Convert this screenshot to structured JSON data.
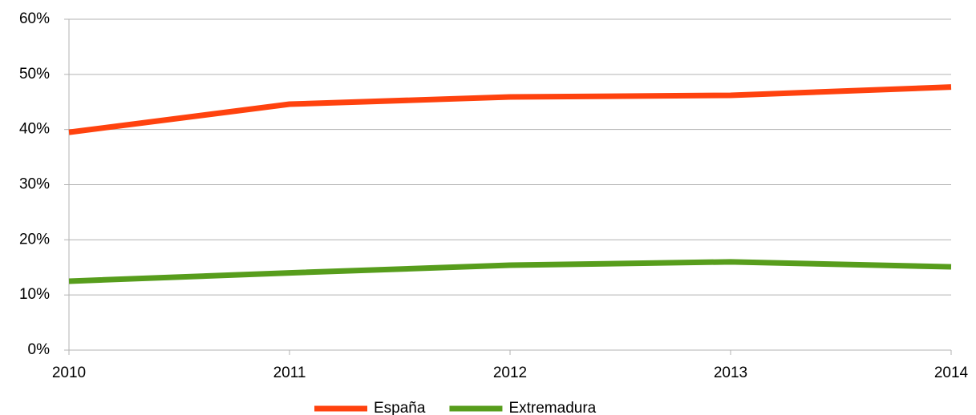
{
  "chart_data": {
    "type": "line",
    "categories": [
      "2010",
      "2011",
      "2012",
      "2013",
      "2014"
    ],
    "series": [
      {
        "name": "España",
        "color": "#ff420e",
        "values": [
          39.5,
          44.6,
          45.9,
          46.2,
          47.7
        ]
      },
      {
        "name": "Extremadura",
        "color": "#579d1c",
        "values": [
          12.5,
          14.0,
          15.4,
          16.0,
          15.1
        ]
      }
    ],
    "ylim": [
      0,
      60
    ],
    "yticks": [
      {
        "value": 0,
        "label": "0%"
      },
      {
        "value": 10,
        "label": "10%"
      },
      {
        "value": 20,
        "label": "20%"
      },
      {
        "value": 30,
        "label": "30%"
      },
      {
        "value": 40,
        "label": "40%"
      },
      {
        "value": 50,
        "label": "50%"
      },
      {
        "value": 60,
        "label": "60%"
      }
    ],
    "grid": true,
    "legend": "bottom"
  }
}
